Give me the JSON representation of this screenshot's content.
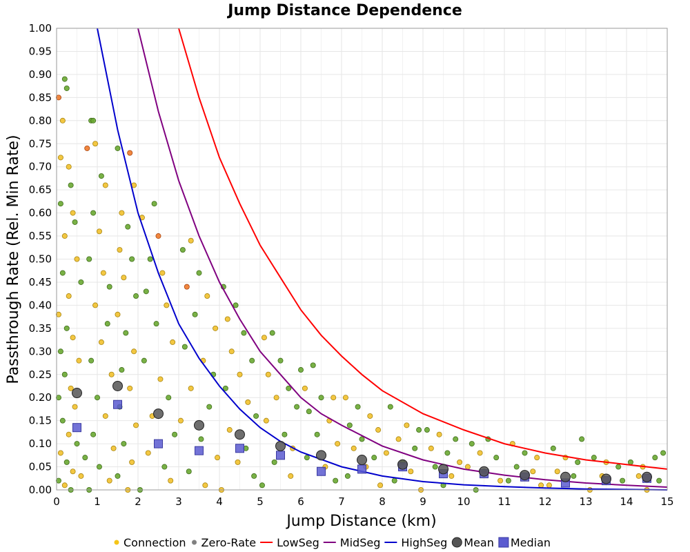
{
  "chart_data": {
    "type": "scatter",
    "title": "Jump Distance Dependence",
    "xlabel": "Jump Distance (km)",
    "ylabel": "Passthrough Rate (Rel. Min Rate)",
    "xlim": [
      0,
      15
    ],
    "ylim": [
      0,
      1.0
    ],
    "x_ticks": [
      "0",
      "1",
      "2",
      "3",
      "4",
      "5",
      "6",
      "7",
      "8",
      "9",
      "10",
      "11",
      "12",
      "13",
      "14",
      "15"
    ],
    "y_ticks": [
      "0.00",
      "0.05",
      "0.10",
      "0.15",
      "0.20",
      "0.25",
      "0.30",
      "0.35",
      "0.40",
      "0.45",
      "0.50",
      "0.55",
      "0.60",
      "0.65",
      "0.70",
      "0.75",
      "0.80",
      "0.85",
      "0.90",
      "0.95",
      "1.00"
    ],
    "grid": true,
    "legend_position": "bottom",
    "legend": [
      {
        "label": "Connection",
        "kind": "dot",
        "color": "#f5c518"
      },
      {
        "label": "Zero-Rate",
        "kind": "dot",
        "color": "#808080"
      },
      {
        "label": "LowSeg",
        "kind": "line",
        "color": "#ff0000"
      },
      {
        "label": "MidSeg",
        "kind": "line",
        "color": "#800080"
      },
      {
        "label": "HighSeg",
        "kind": "line",
        "color": "#0000cc"
      },
      {
        "label": "Mean",
        "kind": "circle",
        "color": "#555555"
      },
      {
        "label": "Median",
        "kind": "square",
        "color": "#5b5bd0"
      }
    ],
    "curves": [
      {
        "name": "LowSeg",
        "color": "#ff0000",
        "points": [
          [
            3.0,
            1.0
          ],
          [
            3.5,
            0.85
          ],
          [
            4,
            0.72
          ],
          [
            4.5,
            0.62
          ],
          [
            5,
            0.53
          ],
          [
            5.5,
            0.46
          ],
          [
            6,
            0.39
          ],
          [
            6.5,
            0.335
          ],
          [
            7,
            0.29
          ],
          [
            7.5,
            0.25
          ],
          [
            8,
            0.215
          ],
          [
            9,
            0.165
          ],
          [
            10,
            0.13
          ],
          [
            11,
            0.1
          ],
          [
            12,
            0.08
          ],
          [
            13,
            0.065
          ],
          [
            14,
            0.055
          ],
          [
            15,
            0.045
          ]
        ]
      },
      {
        "name": "MidSeg",
        "color": "#800080",
        "points": [
          [
            2.0,
            1.0
          ],
          [
            2.5,
            0.82
          ],
          [
            3,
            0.67
          ],
          [
            3.5,
            0.55
          ],
          [
            4,
            0.45
          ],
          [
            4.5,
            0.37
          ],
          [
            5,
            0.3
          ],
          [
            5.5,
            0.25
          ],
          [
            6,
            0.2
          ],
          [
            6.5,
            0.165
          ],
          [
            7,
            0.14
          ],
          [
            8,
            0.095
          ],
          [
            9,
            0.065
          ],
          [
            10,
            0.045
          ],
          [
            11,
            0.032
          ],
          [
            12,
            0.022
          ],
          [
            13,
            0.015
          ],
          [
            14,
            0.01
          ],
          [
            15,
            0.006
          ]
        ]
      },
      {
        "name": "HighSeg",
        "color": "#0000cc",
        "points": [
          [
            1.0,
            1.0
          ],
          [
            1.5,
            0.78
          ],
          [
            2,
            0.6
          ],
          [
            2.5,
            0.47
          ],
          [
            3,
            0.36
          ],
          [
            3.5,
            0.285
          ],
          [
            4,
            0.225
          ],
          [
            4.5,
            0.175
          ],
          [
            5,
            0.135
          ],
          [
            5.5,
            0.105
          ],
          [
            6,
            0.082
          ],
          [
            7,
            0.05
          ],
          [
            8,
            0.03
          ],
          [
            9,
            0.018
          ],
          [
            10,
            0.011
          ],
          [
            11,
            0.007
          ],
          [
            12,
            0.004
          ],
          [
            13,
            0.002
          ],
          [
            15,
            0.0
          ]
        ]
      }
    ],
    "mean": {
      "x": [
        0.5,
        1.5,
        2.5,
        3.5,
        4.5,
        5.5,
        6.5,
        7.5,
        8.5,
        9.5,
        10.5,
        11.5,
        12.5,
        13.5,
        14.5
      ],
      "y": [
        0.21,
        0.225,
        0.165,
        0.14,
        0.12,
        0.095,
        0.075,
        0.065,
        0.055,
        0.045,
        0.04,
        0.032,
        0.028,
        0.024,
        0.028
      ]
    },
    "median": {
      "x": [
        0.5,
        1.5,
        2.5,
        3.5,
        4.5,
        5.5,
        6.5,
        7.5,
        8.5,
        9.5,
        10.5,
        11.5,
        12.5,
        13.5,
        14.5
      ],
      "y": [
        0.135,
        0.185,
        0.1,
        0.085,
        0.09,
        0.075,
        0.04,
        0.045,
        0.05,
        0.035,
        0.035,
        0.028,
        0.015,
        0.02,
        0.025
      ]
    },
    "scatter_samples": [
      [
        0.05,
        0.85,
        "o"
      ],
      [
        0.1,
        0.72,
        "y"
      ],
      [
        0.15,
        0.8,
        "y"
      ],
      [
        0.2,
        0.89,
        "g"
      ],
      [
        0.25,
        0.87,
        "g"
      ],
      [
        0.1,
        0.62,
        "g"
      ],
      [
        0.3,
        0.7,
        "y"
      ],
      [
        0.35,
        0.66,
        "g"
      ],
      [
        0.4,
        0.6,
        "y"
      ],
      [
        0.2,
        0.55,
        "y"
      ],
      [
        0.45,
        0.58,
        "g"
      ],
      [
        0.5,
        0.5,
        "y"
      ],
      [
        0.15,
        0.47,
        "g"
      ],
      [
        0.3,
        0.42,
        "y"
      ],
      [
        0.6,
        0.45,
        "g"
      ],
      [
        0.05,
        0.38,
        "y"
      ],
      [
        0.25,
        0.35,
        "g"
      ],
      [
        0.4,
        0.33,
        "y"
      ],
      [
        0.1,
        0.3,
        "g"
      ],
      [
        0.55,
        0.28,
        "y"
      ],
      [
        0.2,
        0.25,
        "g"
      ],
      [
        0.35,
        0.22,
        "y"
      ],
      [
        0.05,
        0.2,
        "g"
      ],
      [
        0.45,
        0.18,
        "y"
      ],
      [
        0.15,
        0.15,
        "g"
      ],
      [
        0.3,
        0.12,
        "y"
      ],
      [
        0.5,
        0.1,
        "g"
      ],
      [
        0.1,
        0.08,
        "y"
      ],
      [
        0.25,
        0.06,
        "g"
      ],
      [
        0.4,
        0.04,
        "y"
      ],
      [
        0.05,
        0.02,
        "g"
      ],
      [
        0.2,
        0.01,
        "y"
      ],
      [
        0.35,
        0.0,
        "g"
      ],
      [
        0.6,
        0.03,
        "y"
      ],
      [
        0.7,
        0.07,
        "g"
      ],
      [
        0.85,
        0.8,
        "g"
      ],
      [
        0.9,
        0.8,
        "g"
      ],
      [
        0.75,
        0.74,
        "o"
      ],
      [
        0.95,
        0.75,
        "y"
      ],
      [
        1.1,
        0.68,
        "g"
      ],
      [
        1.2,
        0.66,
        "y"
      ],
      [
        0.9,
        0.6,
        "g"
      ],
      [
        1.05,
        0.56,
        "y"
      ],
      [
        0.8,
        0.5,
        "g"
      ],
      [
        1.15,
        0.47,
        "y"
      ],
      [
        1.3,
        0.44,
        "g"
      ],
      [
        0.95,
        0.4,
        "y"
      ],
      [
        1.25,
        0.36,
        "g"
      ],
      [
        1.1,
        0.32,
        "y"
      ],
      [
        0.85,
        0.28,
        "g"
      ],
      [
        1.35,
        0.25,
        "y"
      ],
      [
        1.0,
        0.2,
        "g"
      ],
      [
        1.2,
        0.16,
        "y"
      ],
      [
        0.9,
        0.12,
        "g"
      ],
      [
        1.4,
        0.09,
        "y"
      ],
      [
        1.05,
        0.05,
        "g"
      ],
      [
        1.3,
        0.02,
        "y"
      ],
      [
        0.8,
        0.0,
        "g"
      ],
      [
        1.5,
        0.74,
        "g"
      ],
      [
        1.8,
        0.73,
        "o"
      ],
      [
        1.9,
        0.66,
        "y"
      ],
      [
        1.6,
        0.6,
        "y"
      ],
      [
        1.75,
        0.57,
        "g"
      ],
      [
        1.55,
        0.52,
        "y"
      ],
      [
        1.85,
        0.5,
        "g"
      ],
      [
        1.65,
        0.46,
        "y"
      ],
      [
        1.95,
        0.42,
        "g"
      ],
      [
        1.5,
        0.38,
        "y"
      ],
      [
        1.7,
        0.34,
        "g"
      ],
      [
        1.9,
        0.3,
        "y"
      ],
      [
        1.6,
        0.26,
        "g"
      ],
      [
        1.8,
        0.22,
        "y"
      ],
      [
        1.55,
        0.18,
        "g"
      ],
      [
        1.95,
        0.14,
        "y"
      ],
      [
        1.65,
        0.1,
        "g"
      ],
      [
        1.85,
        0.06,
        "y"
      ],
      [
        1.5,
        0.03,
        "g"
      ],
      [
        1.75,
        0.0,
        "y"
      ],
      [
        2.1,
        0.59,
        "y"
      ],
      [
        2.4,
        0.62,
        "g"
      ],
      [
        2.5,
        0.55,
        "o"
      ],
      [
        2.3,
        0.5,
        "g"
      ],
      [
        2.6,
        0.47,
        "y"
      ],
      [
        2.2,
        0.43,
        "g"
      ],
      [
        2.7,
        0.4,
        "y"
      ],
      [
        2.45,
        0.36,
        "g"
      ],
      [
        2.85,
        0.32,
        "y"
      ],
      [
        2.15,
        0.28,
        "g"
      ],
      [
        2.55,
        0.24,
        "y"
      ],
      [
        2.75,
        0.2,
        "g"
      ],
      [
        2.35,
        0.16,
        "y"
      ],
      [
        2.9,
        0.12,
        "g"
      ],
      [
        2.25,
        0.08,
        "y"
      ],
      [
        2.65,
        0.05,
        "g"
      ],
      [
        2.8,
        0.02,
        "y"
      ],
      [
        2.05,
        0.0,
        "g"
      ],
      [
        3.1,
        0.52,
        "g"
      ],
      [
        3.3,
        0.54,
        "y"
      ],
      [
        3.5,
        0.47,
        "g"
      ],
      [
        3.2,
        0.44,
        "o"
      ],
      [
        3.7,
        0.42,
        "y"
      ],
      [
        3.4,
        0.38,
        "g"
      ],
      [
        3.9,
        0.35,
        "y"
      ],
      [
        3.15,
        0.31,
        "g"
      ],
      [
        3.6,
        0.28,
        "y"
      ],
      [
        3.85,
        0.25,
        "g"
      ],
      [
        3.3,
        0.22,
        "y"
      ],
      [
        3.75,
        0.18,
        "g"
      ],
      [
        3.05,
        0.15,
        "y"
      ],
      [
        3.55,
        0.11,
        "g"
      ],
      [
        3.95,
        0.07,
        "y"
      ],
      [
        3.25,
        0.04,
        "g"
      ],
      [
        3.65,
        0.01,
        "y"
      ],
      [
        4.1,
        0.44,
        "g"
      ],
      [
        4.4,
        0.4,
        "g"
      ],
      [
        4.2,
        0.37,
        "y"
      ],
      [
        4.6,
        0.34,
        "g"
      ],
      [
        4.3,
        0.3,
        "y"
      ],
      [
        4.8,
        0.28,
        "g"
      ],
      [
        4.5,
        0.25,
        "y"
      ],
      [
        4.15,
        0.22,
        "g"
      ],
      [
        4.7,
        0.19,
        "y"
      ],
      [
        4.9,
        0.16,
        "g"
      ],
      [
        4.25,
        0.13,
        "y"
      ],
      [
        4.65,
        0.09,
        "g"
      ],
      [
        4.45,
        0.06,
        "y"
      ],
      [
        4.85,
        0.03,
        "g"
      ],
      [
        4.05,
        0.0,
        "y"
      ],
      [
        5.1,
        0.33,
        "y"
      ],
      [
        5.3,
        0.34,
        "g"
      ],
      [
        5.5,
        0.28,
        "g"
      ],
      [
        5.2,
        0.25,
        "y"
      ],
      [
        5.7,
        0.22,
        "g"
      ],
      [
        5.4,
        0.2,
        "y"
      ],
      [
        5.9,
        0.18,
        "g"
      ],
      [
        5.15,
        0.15,
        "y"
      ],
      [
        5.6,
        0.12,
        "g"
      ],
      [
        5.8,
        0.09,
        "y"
      ],
      [
        5.35,
        0.06,
        "g"
      ],
      [
        5.75,
        0.03,
        "y"
      ],
      [
        5.05,
        0.01,
        "g"
      ],
      [
        6.0,
        0.26,
        "g"
      ],
      [
        6.3,
        0.27,
        "g"
      ],
      [
        6.1,
        0.22,
        "y"
      ],
      [
        6.5,
        0.2,
        "g"
      ],
      [
        6.8,
        0.2,
        "y"
      ],
      [
        6.2,
        0.17,
        "g"
      ],
      [
        6.7,
        0.15,
        "y"
      ],
      [
        6.4,
        0.12,
        "g"
      ],
      [
        6.9,
        0.1,
        "y"
      ],
      [
        6.15,
        0.07,
        "g"
      ],
      [
        6.6,
        0.05,
        "y"
      ],
      [
        6.85,
        0.02,
        "g"
      ],
      [
        7.1,
        0.2,
        "y"
      ],
      [
        7.4,
        0.18,
        "g"
      ],
      [
        7.7,
        0.16,
        "y"
      ],
      [
        7.2,
        0.14,
        "g"
      ],
      [
        7.9,
        0.13,
        "y"
      ],
      [
        7.5,
        0.11,
        "g"
      ],
      [
        7.3,
        0.09,
        "y"
      ],
      [
        7.8,
        0.07,
        "g"
      ],
      [
        7.6,
        0.05,
        "y"
      ],
      [
        7.15,
        0.03,
        "g"
      ],
      [
        7.95,
        0.01,
        "y"
      ],
      [
        8.2,
        0.18,
        "g"
      ],
      [
        8.6,
        0.14,
        "y"
      ],
      [
        8.9,
        0.13,
        "g"
      ],
      [
        8.4,
        0.11,
        "y"
      ],
      [
        8.8,
        0.09,
        "g"
      ],
      [
        8.1,
        0.08,
        "y"
      ],
      [
        8.5,
        0.06,
        "g"
      ],
      [
        8.7,
        0.04,
        "y"
      ],
      [
        8.3,
        0.02,
        "g"
      ],
      [
        8.95,
        0.0,
        "y"
      ],
      [
        9.1,
        0.13,
        "g"
      ],
      [
        9.4,
        0.12,
        "y"
      ],
      [
        9.8,
        0.11,
        "g"
      ],
      [
        9.2,
        0.09,
        "y"
      ],
      [
        9.6,
        0.08,
        "g"
      ],
      [
        9.9,
        0.06,
        "y"
      ],
      [
        9.3,
        0.05,
        "g"
      ],
      [
        9.7,
        0.03,
        "y"
      ],
      [
        9.5,
        0.01,
        "g"
      ],
      [
        10.2,
        0.1,
        "g"
      ],
      [
        10.6,
        0.11,
        "g"
      ],
      [
        10.4,
        0.08,
        "y"
      ],
      [
        10.8,
        0.07,
        "g"
      ],
      [
        10.1,
        0.05,
        "y"
      ],
      [
        10.5,
        0.04,
        "g"
      ],
      [
        10.9,
        0.02,
        "y"
      ],
      [
        10.3,
        0.0,
        "g"
      ],
      [
        11.2,
        0.1,
        "y"
      ],
      [
        11.5,
        0.08,
        "g"
      ],
      [
        11.8,
        0.07,
        "y"
      ],
      [
        11.3,
        0.05,
        "g"
      ],
      [
        11.7,
        0.04,
        "y"
      ],
      [
        11.1,
        0.02,
        "g"
      ],
      [
        11.9,
        0.01,
        "y"
      ],
      [
        12.2,
        0.09,
        "g"
      ],
      [
        12.5,
        0.07,
        "y"
      ],
      [
        12.8,
        0.06,
        "g"
      ],
      [
        12.9,
        0.11,
        "g"
      ],
      [
        12.3,
        0.04,
        "y"
      ],
      [
        12.7,
        0.03,
        "g"
      ],
      [
        12.1,
        0.01,
        "y"
      ],
      [
        13.2,
        0.07,
        "g"
      ],
      [
        13.5,
        0.06,
        "y"
      ],
      [
        13.8,
        0.05,
        "g"
      ],
      [
        13.4,
        0.03,
        "y"
      ],
      [
        13.9,
        0.02,
        "g"
      ],
      [
        13.1,
        0.0,
        "y"
      ],
      [
        14.1,
        0.06,
        "g"
      ],
      [
        14.4,
        0.05,
        "y"
      ],
      [
        14.7,
        0.07,
        "g"
      ],
      [
        14.9,
        0.08,
        "g"
      ],
      [
        14.3,
        0.03,
        "y"
      ],
      [
        14.8,
        0.02,
        "g"
      ],
      [
        14.5,
        0.0,
        "y"
      ]
    ]
  }
}
